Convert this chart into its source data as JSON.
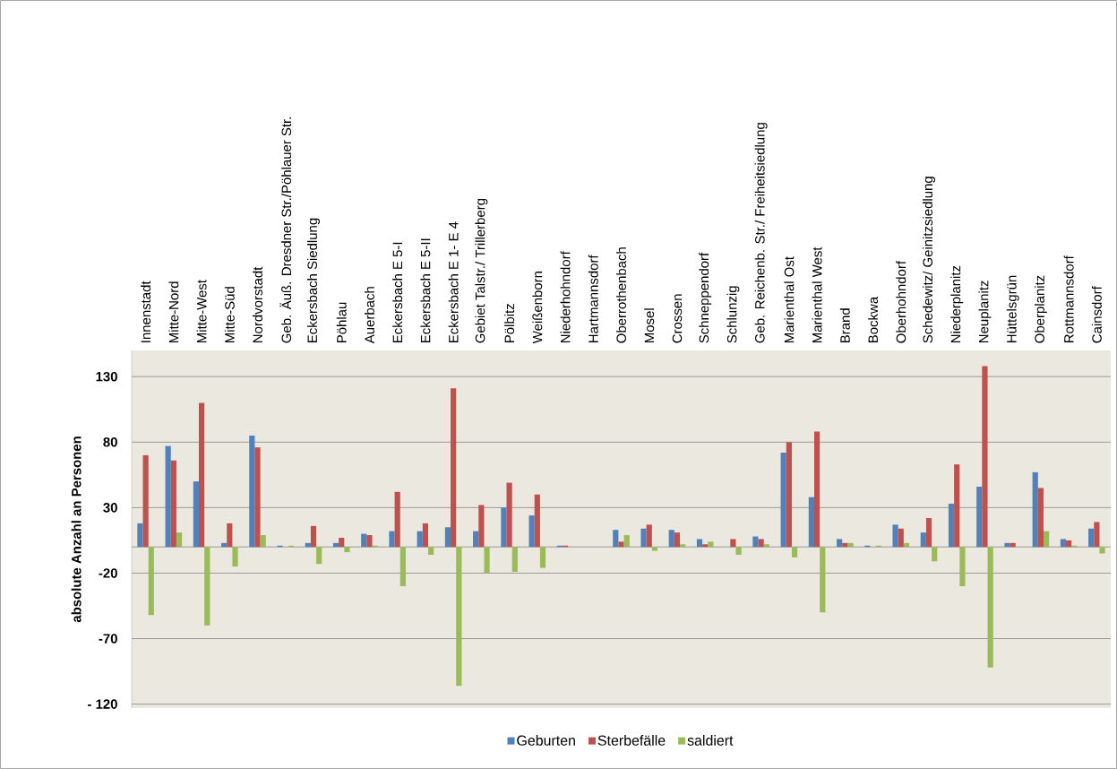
{
  "chart_data": {
    "type": "bar",
    "ylabel": "absolute Anzahl an Personen",
    "categories": [
      "Innenstadt",
      "Mitte-Nord",
      "Mitte-West",
      "Mitte-Süd",
      "Nordvorstadt",
      "Geb. Äuß. Dresdner Str./Pöhlauer Str.",
      "Eckersbach Siedlung",
      "Pöhlau",
      "Auerbach",
      "Eckersbach E 5-I",
      "Eckersbach E 5-II",
      "Eckersbach E 1- E 4",
      "Gebiet Talstr./ Trillerberg",
      "Pölbitz",
      "Weißenborn",
      "Niederhohndorf",
      "Hartmannsdorf",
      "Oberrothenbach",
      "Mosel",
      "Crossen",
      "Schneppendorf",
      "Schlunzig",
      "Geb. Reichenb. Str./ Freiheitsiedlung",
      "Marienthal Ost",
      "Marienthal West",
      "Brand",
      "Bockwa",
      "Oberhohndorf",
      "Schedewitz/ Geinitzsiedlung",
      "Niederplanitz",
      "Neuplanitz",
      "Hüttelsgrün",
      "Oberplanitz",
      "Rottmannsdorf",
      "Cainsdorf"
    ],
    "series": [
      {
        "name": "Geburten",
        "color": "#4f81bd",
        "values": [
          18,
          77,
          50,
          3,
          85,
          1,
          3,
          3,
          10,
          12,
          12,
          15,
          12,
          30,
          24,
          1,
          0,
          13,
          14,
          13,
          6,
          0,
          8,
          72,
          38,
          6,
          1,
          17,
          11,
          33,
          46,
          3,
          57,
          6,
          14
        ]
      },
      {
        "name": "Sterbefälle",
        "color": "#c0504d",
        "values": [
          70,
          66,
          110,
          18,
          76,
          0,
          16,
          7,
          9,
          42,
          18,
          121,
          32,
          49,
          40,
          1,
          0,
          4,
          17,
          11,
          2,
          6,
          6,
          80,
          88,
          3,
          0,
          14,
          22,
          63,
          138,
          3,
          45,
          5,
          19
        ]
      },
      {
        "name": "saldiert",
        "color": "#9bbb59",
        "values": [
          -52,
          11,
          -60,
          -15,
          9,
          1,
          -13,
          -4,
          1,
          -30,
          -6,
          -106,
          -20,
          -19,
          -16,
          0,
          0,
          9,
          -3,
          2,
          4,
          -6,
          2,
          -8,
          -50,
          3,
          1,
          3,
          -11,
          -30,
          -92,
          0,
          12,
          1,
          -5
        ]
      }
    ],
    "ylim": [
      -123,
      150
    ],
    "yticks": [
      {
        "value": -120,
        "label": "- 120"
      },
      -70,
      -20,
      30,
      80,
      130
    ],
    "grid": "y",
    "legend": "bottom"
  }
}
